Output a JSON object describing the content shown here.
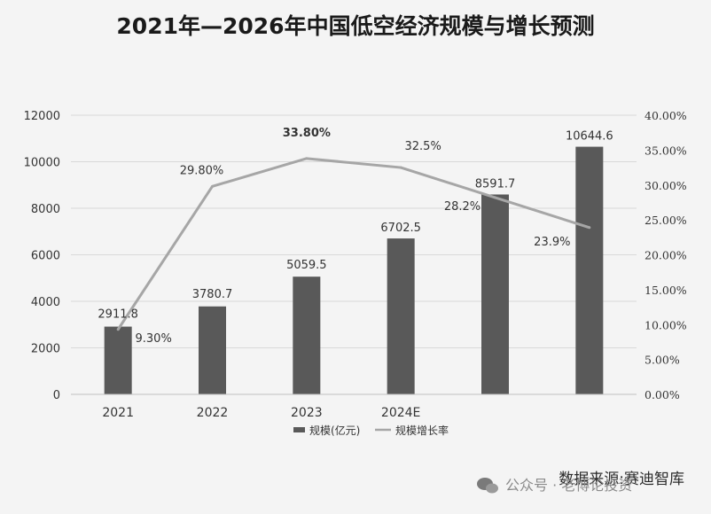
{
  "chart_data": {
    "type": "bar",
    "title": "2021年—2026年中国低空经济规模与增长预测",
    "categories": [
      "2021",
      "2022",
      "2023",
      "2024E",
      "",
      ""
    ],
    "series": [
      {
        "name": "规模(亿元)",
        "type": "bar",
        "axis": "left",
        "values": [
          2911.8,
          3780.7,
          5059.5,
          6702.5,
          8591.7,
          10644.6
        ],
        "labels": [
          "2911.8",
          "3780.7",
          "5059.5",
          "6702.5",
          "8591.7",
          "10644.6"
        ],
        "color": "#595959"
      },
      {
        "name": "规模增长率",
        "type": "line",
        "axis": "right",
        "values": [
          9.3,
          29.8,
          33.8,
          32.5,
          28.2,
          23.9
        ],
        "labels": [
          "9.30%",
          "29.80%",
          "33.80%",
          "32.5%",
          "28.2%",
          "23.9%"
        ],
        "color": "#a6a6a6"
      }
    ],
    "y_left": {
      "ylim": [
        0,
        12000
      ],
      "ticks": [
        "0",
        "2000",
        "4000",
        "6000",
        "8000",
        "10000",
        "12000"
      ]
    },
    "y_right": {
      "ylim": [
        0,
        40
      ],
      "ticks": [
        "0.00%",
        "5.00%",
        "10.00%",
        "15.00%",
        "20.00%",
        "25.00%",
        "30.00%",
        "35.00%",
        "40.00%"
      ]
    },
    "grid": true,
    "legend": "bottom"
  },
  "footer": {
    "source": "数据来源:赛迪智库",
    "watermark": "公众号 · 老博论投资"
  }
}
